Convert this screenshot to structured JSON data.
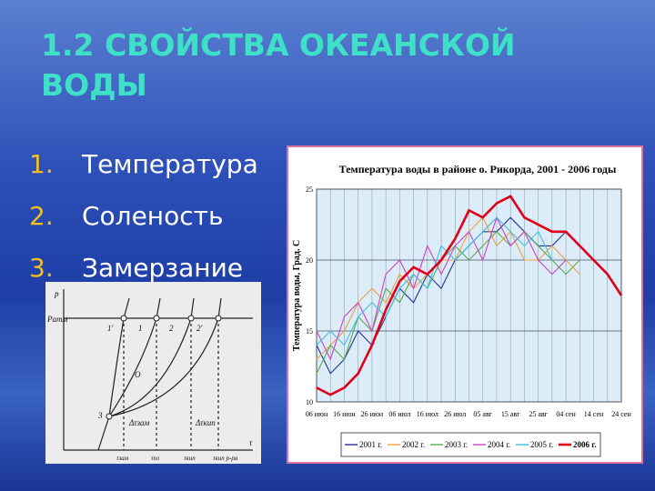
{
  "slide": {
    "title": "1.2 СВОЙСТВА ОКЕАНСКОЙ ВОДЫ",
    "list": [
      {
        "marker": "1.",
        "text": "Температура"
      },
      {
        "marker": "2.",
        "text": "Соленость"
      },
      {
        "marker": "3.",
        "text": "Замерзание"
      }
    ]
  },
  "chart_data": {
    "type": "line",
    "title": "Температура воды в районе о. Рикорда,   2001 - 2006 годы",
    "y_label": "Температура воды, Град. С",
    "categories": [
      "06 июн",
      null,
      "16 июн",
      null,
      "26 июн",
      null,
      "06 июл",
      null,
      "16 июл",
      null,
      "26 июл",
      null,
      "05 авг",
      null,
      "15 авг",
      null,
      "25 авг",
      null,
      "04 сен",
      null,
      "14 сен",
      null,
      "24 сен"
    ],
    "ylim": [
      10,
      25
    ],
    "yticks": [
      10,
      15,
      20,
      25
    ],
    "grid": true,
    "series": [
      {
        "name": "2001 г.",
        "color": "#23349a",
        "values": [
          14,
          12,
          13,
          15,
          14,
          16,
          18,
          17,
          19,
          18,
          20,
          21,
          22,
          22,
          23,
          22,
          21,
          21,
          22,
          21,
          20,
          null,
          null
        ]
      },
      {
        "name": "2002 г.",
        "color": "#f0a040",
        "values": [
          13,
          14,
          15,
          17,
          18,
          17,
          19,
          18,
          19,
          20,
          20,
          22,
          23,
          21,
          22,
          20,
          20,
          21,
          20,
          19,
          null,
          null,
          null
        ]
      },
      {
        "name": "2003 г.",
        "color": "#5aa84a",
        "values": [
          12,
          14,
          13,
          16,
          15,
          18,
          17,
          19,
          18,
          20,
          21,
          20,
          21,
          22,
          21,
          22,
          21,
          20,
          19,
          20,
          null,
          null,
          null
        ]
      },
      {
        "name": "2004 г.",
        "color": "#d040c8",
        "values": [
          15,
          13,
          16,
          17,
          15,
          19,
          20,
          18,
          21,
          19,
          21,
          22,
          20,
          23,
          21,
          22,
          20,
          19,
          20,
          null,
          null,
          null,
          null
        ]
      },
      {
        "name": "2005 г.",
        "color": "#40c0e0",
        "values": [
          14,
          15,
          14,
          16,
          17,
          16,
          18,
          19,
          18,
          21,
          20,
          21,
          22,
          23,
          22,
          21,
          22,
          20,
          null,
          null,
          null,
          null,
          null
        ]
      },
      {
        "name": "2006 г.",
        "color": "#e00018",
        "values": [
          11,
          10.5,
          11,
          12,
          14,
          16.5,
          18.5,
          19.5,
          19,
          20,
          21.5,
          23.5,
          23,
          24,
          24.5,
          23,
          22.5,
          22,
          22,
          21,
          20,
          19,
          17.5
        ]
      }
    ]
  },
  "diagram": {
    "labels": [
      "p",
      "Pатм",
      "1'",
      "1",
      "2",
      "2'",
      "O",
      "3",
      "Δτзам",
      "Δτкип",
      "τзам",
      "τпл",
      "τкип",
      "τкип р-ра",
      "τ"
    ]
  }
}
